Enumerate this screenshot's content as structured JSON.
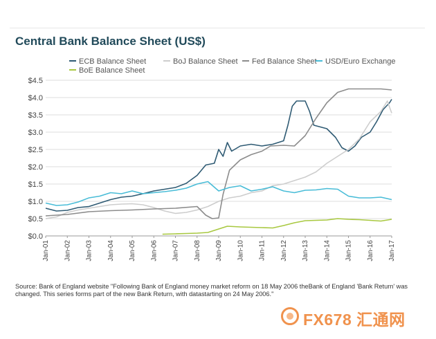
{
  "chart_data": {
    "type": "line",
    "title": "Central Bank Balance Sheet (US$)",
    "xlabel": "",
    "ylabel": "",
    "ylim": [
      0,
      4.5
    ],
    "y_ticks": [
      0,
      0.5,
      1.0,
      1.5,
      2.0,
      2.5,
      3.0,
      3.5,
      4.0,
      4.5
    ],
    "y_tick_labels": [
      "$0.0",
      "$0.5",
      "$1.0",
      "$1.5",
      "$2.0",
      "$2.5",
      "$3.0",
      "$3.5",
      "$4.0",
      "$4.5"
    ],
    "x_ticks": [
      2001,
      2002,
      2003,
      2004,
      2005,
      2006,
      2007,
      2008,
      2009,
      2010,
      2011,
      2012,
      2013,
      2014,
      2015,
      2016,
      2017
    ],
    "x_tick_labels": [
      "Jan-01",
      "Jan-02",
      "Jan-03",
      "Jan-04",
      "Jan-05",
      "Jan-06",
      "Jan-07",
      "Jan-08",
      "Jan-09",
      "Jan-10",
      "Jan-11",
      "Jan-12",
      "Jan-13",
      "Jan-14",
      "Jan-15",
      "Jan-16",
      "Jan-17"
    ],
    "xlim": [
      2001,
      2017
    ],
    "grid": true,
    "legend_position": "top",
    "series": [
      {
        "name": "ECB Balance Sheet",
        "color": "#2e5a73",
        "points": [
          [
            2001,
            0.8
          ],
          [
            2001.5,
            0.72
          ],
          [
            2002,
            0.74
          ],
          [
            2002.5,
            0.82
          ],
          [
            2003,
            0.85
          ],
          [
            2003.5,
            0.95
          ],
          [
            2004,
            1.05
          ],
          [
            2004.5,
            1.12
          ],
          [
            2005,
            1.15
          ],
          [
            2005.5,
            1.22
          ],
          [
            2006,
            1.3
          ],
          [
            2006.5,
            1.35
          ],
          [
            2007,
            1.4
          ],
          [
            2007.5,
            1.52
          ],
          [
            2008,
            1.75
          ],
          [
            2008.4,
            2.05
          ],
          [
            2008.8,
            2.1
          ],
          [
            2009,
            2.5
          ],
          [
            2009.2,
            2.3
          ],
          [
            2009.4,
            2.7
          ],
          [
            2009.6,
            2.45
          ],
          [
            2010,
            2.6
          ],
          [
            2010.5,
            2.65
          ],
          [
            2011,
            2.6
          ],
          [
            2011.5,
            2.65
          ],
          [
            2012,
            2.75
          ],
          [
            2012.2,
            3.2
          ],
          [
            2012.4,
            3.75
          ],
          [
            2012.6,
            3.9
          ],
          [
            2013,
            3.9
          ],
          [
            2013.2,
            3.6
          ],
          [
            2013.4,
            3.2
          ],
          [
            2013.7,
            3.15
          ],
          [
            2014,
            3.1
          ],
          [
            2014.4,
            2.85
          ],
          [
            2014.7,
            2.55
          ],
          [
            2015,
            2.45
          ],
          [
            2015.3,
            2.6
          ],
          [
            2015.6,
            2.85
          ],
          [
            2016,
            3.0
          ],
          [
            2016.3,
            3.3
          ],
          [
            2016.6,
            3.65
          ],
          [
            2016.9,
            3.85
          ],
          [
            2017,
            3.95
          ]
        ]
      },
      {
        "name": "BoJ Balance Sheet",
        "color": "#cdcdcd",
        "points": [
          [
            2001,
            0.5
          ],
          [
            2001.5,
            0.55
          ],
          [
            2002,
            0.68
          ],
          [
            2002.5,
            0.75
          ],
          [
            2003,
            0.8
          ],
          [
            2003.5,
            0.85
          ],
          [
            2004,
            0.9
          ],
          [
            2004.5,
            0.92
          ],
          [
            2005,
            0.93
          ],
          [
            2005.5,
            0.9
          ],
          [
            2006,
            0.82
          ],
          [
            2006.5,
            0.72
          ],
          [
            2007,
            0.65
          ],
          [
            2007.5,
            0.68
          ],
          [
            2008,
            0.75
          ],
          [
            2008.5,
            0.85
          ],
          [
            2009,
            1.0
          ],
          [
            2009.5,
            1.1
          ],
          [
            2010,
            1.15
          ],
          [
            2010.5,
            1.25
          ],
          [
            2011,
            1.3
          ],
          [
            2011.5,
            1.45
          ],
          [
            2012,
            1.5
          ],
          [
            2012.5,
            1.6
          ],
          [
            2013,
            1.7
          ],
          [
            2013.5,
            1.85
          ],
          [
            2014,
            2.1
          ],
          [
            2014.5,
            2.3
          ],
          [
            2015,
            2.5
          ],
          [
            2015.5,
            2.8
          ],
          [
            2016,
            3.3
          ],
          [
            2016.5,
            3.6
          ],
          [
            2016.8,
            3.9
          ],
          [
            2017,
            3.55
          ]
        ]
      },
      {
        "name": "Fed Balance Sheet",
        "color": "#8c8c8c",
        "points": [
          [
            2001,
            0.58
          ],
          [
            2002,
            0.62
          ],
          [
            2003,
            0.7
          ],
          [
            2004,
            0.73
          ],
          [
            2005,
            0.75
          ],
          [
            2006,
            0.78
          ],
          [
            2007,
            0.8
          ],
          [
            2008,
            0.85
          ],
          [
            2008.4,
            0.6
          ],
          [
            2008.7,
            0.5
          ],
          [
            2009,
            0.52
          ],
          [
            2009.2,
            1.2
          ],
          [
            2009.5,
            1.9
          ],
          [
            2010,
            2.2
          ],
          [
            2010.5,
            2.35
          ],
          [
            2011,
            2.45
          ],
          [
            2011.4,
            2.6
          ],
          [
            2012,
            2.62
          ],
          [
            2012.5,
            2.6
          ],
          [
            2013,
            2.9
          ],
          [
            2013.5,
            3.4
          ],
          [
            2014,
            3.85
          ],
          [
            2014.5,
            4.15
          ],
          [
            2015,
            4.25
          ],
          [
            2015.5,
            4.25
          ],
          [
            2016,
            4.25
          ],
          [
            2016.5,
            4.25
          ],
          [
            2017,
            4.22
          ]
        ]
      },
      {
        "name": "USD/Euro Exchange",
        "color": "#48bcd7",
        "points": [
          [
            2001,
            0.95
          ],
          [
            2001.5,
            0.88
          ],
          [
            2002,
            0.9
          ],
          [
            2002.5,
            0.98
          ],
          [
            2003,
            1.1
          ],
          [
            2003.5,
            1.15
          ],
          [
            2004,
            1.25
          ],
          [
            2004.5,
            1.22
          ],
          [
            2005,
            1.3
          ],
          [
            2005.5,
            1.22
          ],
          [
            2006,
            1.25
          ],
          [
            2006.5,
            1.28
          ],
          [
            2007,
            1.32
          ],
          [
            2007.5,
            1.38
          ],
          [
            2008,
            1.5
          ],
          [
            2008.5,
            1.57
          ],
          [
            2009,
            1.3
          ],
          [
            2009.5,
            1.4
          ],
          [
            2010,
            1.45
          ],
          [
            2010.5,
            1.3
          ],
          [
            2011,
            1.35
          ],
          [
            2011.5,
            1.42
          ],
          [
            2012,
            1.3
          ],
          [
            2012.5,
            1.25
          ],
          [
            2013,
            1.32
          ],
          [
            2013.5,
            1.33
          ],
          [
            2014,
            1.37
          ],
          [
            2014.5,
            1.35
          ],
          [
            2015,
            1.15
          ],
          [
            2015.5,
            1.1
          ],
          [
            2016,
            1.1
          ],
          [
            2016.5,
            1.12
          ],
          [
            2017,
            1.05
          ]
        ]
      },
      {
        "name": "BoE Balance Sheet",
        "color": "#a8c83f",
        "points": [
          [
            2006.4,
            0.05
          ],
          [
            2007,
            0.06
          ],
          [
            2007.5,
            0.07
          ],
          [
            2008,
            0.08
          ],
          [
            2008.5,
            0.1
          ],
          [
            2009,
            0.2
          ],
          [
            2009.4,
            0.28
          ],
          [
            2010,
            0.26
          ],
          [
            2010.5,
            0.25
          ],
          [
            2011,
            0.24
          ],
          [
            2011.5,
            0.23
          ],
          [
            2012,
            0.3
          ],
          [
            2012.5,
            0.38
          ],
          [
            2013,
            0.44
          ],
          [
            2013.5,
            0.45
          ],
          [
            2014,
            0.46
          ],
          [
            2014.5,
            0.5
          ],
          [
            2015,
            0.48
          ],
          [
            2015.5,
            0.47
          ],
          [
            2016,
            0.45
          ],
          [
            2016.5,
            0.43
          ],
          [
            2017,
            0.48
          ]
        ]
      }
    ]
  },
  "source_note": "Source: Bank of England website \"Following Bank of England money market reform on 18 May 2006 theBank of England 'Bank Return' was changed. This series forms part of the new Bank Return, with datastarting on 24 May 2006.\"",
  "brand": {
    "text": "FX678 汇通网",
    "color": "#f0924d"
  }
}
